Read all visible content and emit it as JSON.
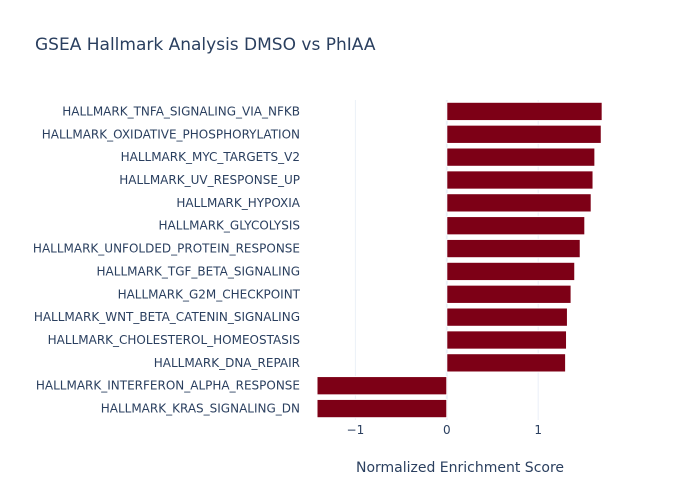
{
  "chart_data": {
    "type": "bar",
    "orientation": "horizontal",
    "title": "GSEA Hallmark Analysis DMSO vs PhIAA",
    "xlabel": "Normalized Enrichment Score",
    "ylabel": "",
    "xlim": [
      -1.42,
      1.72
    ],
    "xticks": [
      {
        "value": -1,
        "label": "−1"
      },
      {
        "value": 0,
        "label": "0"
      },
      {
        "value": 1,
        "label": "1"
      }
    ],
    "grid": true,
    "bar_color": "#7d0016",
    "categories": [
      "HALLMARK_TNFA_SIGNALING_VIA_NFKB",
      "HALLMARK_OXIDATIVE_PHOSPHORYLATION",
      "HALLMARK_MYC_TARGETS_V2",
      "HALLMARK_UV_RESPONSE_UP",
      "HALLMARK_HYPOXIA",
      "HALLMARK_GLYCOLYSIS",
      "HALLMARK_UNFOLDED_PROTEIN_RESPONSE",
      "HALLMARK_TGF_BETA_SIGNALING",
      "HALLMARK_G2M_CHECKPOINT",
      "HALLMARK_WNT_BETA_CATENIN_SIGNALING",
      "HALLMARK_CHOLESTEROL_HOMEOSTASIS",
      "HALLMARK_DNA_REPAIR",
      "HALLMARK_INTERFERON_ALPHA_RESPONSE",
      "HALLMARK_KRAS_SIGNALING_DN"
    ],
    "values": [
      1.7,
      1.69,
      1.62,
      1.6,
      1.58,
      1.51,
      1.46,
      1.4,
      1.36,
      1.32,
      1.31,
      1.3,
      -1.42,
      -1.42
    ]
  }
}
